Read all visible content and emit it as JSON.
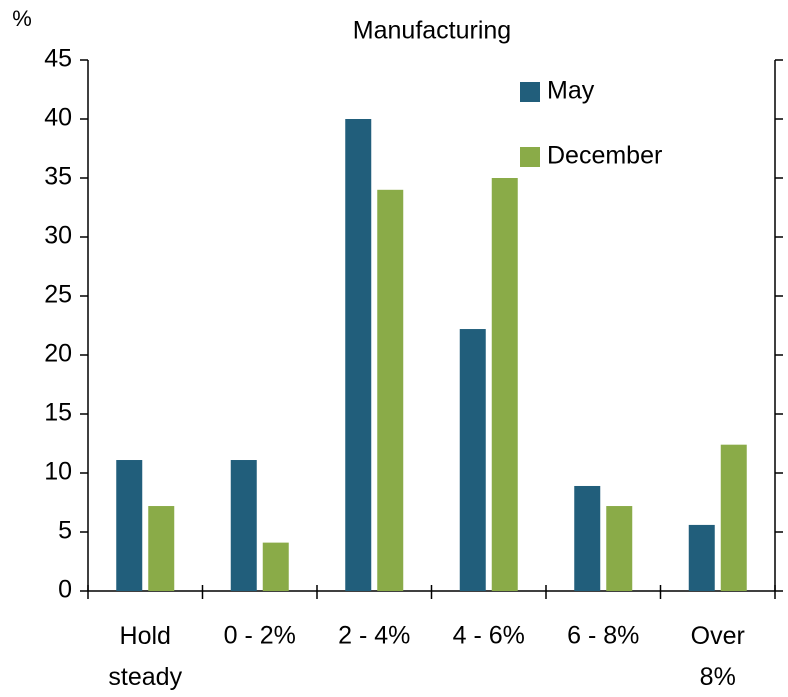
{
  "chart_data": {
    "type": "bar",
    "title": "Manufacturing",
    "y_label": "%",
    "categories": [
      "Hold steady",
      "0 - 2%",
      "2 - 4%",
      "4 - 6%",
      "6 - 8%",
      "Over 8%"
    ],
    "series": [
      {
        "name": "May",
        "color": "#215e7b",
        "values": [
          11.1,
          11.1,
          40,
          22.2,
          8.9,
          5.6
        ]
      },
      {
        "name": "December",
        "color": "#8aab48",
        "values": [
          7.2,
          4.1,
          34,
          35,
          7.2,
          12.4
        ]
      }
    ],
    "ylim": [
      0,
      45
    ],
    "yticks": [
      0,
      5,
      10,
      15,
      20,
      25,
      30,
      35,
      40,
      45
    ],
    "grid": false,
    "legend": "top-right"
  }
}
